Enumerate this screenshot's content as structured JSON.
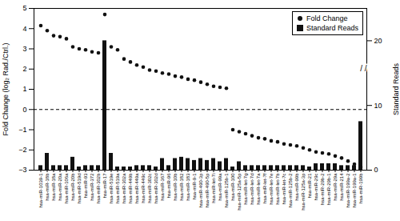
{
  "chart_data": {
    "type": "bar",
    "categories": [
      "hsa-miR-1039-1",
      "hsa-miR-18b",
      "hsa-miR-18a",
      "hsa-miR-20a",
      "hsa-miR-106a",
      "hsa-miR-20b",
      "hsa-miR-519d",
      "hsa-miR-93",
      "hsa-miR-372",
      "hsa-miR-302b",
      "hsa-miR-17",
      "hsa-miR-519e",
      "hsa-miR-519a",
      "hsa-miR-302a",
      "hsa-miR-449b",
      "hsa-miR-449a",
      "hsa-miR-449c",
      "hsa-miR-302c",
      "hsa-miR-302d",
      "hsa-miR-367",
      "hsa-miR-96",
      "hsa-miR-10b",
      "hsa-miR-182",
      "hsa-miR-183",
      "hsa-miR-9-1",
      "hsa-miR-490-3p",
      "hsa-miR-490-5p",
      "hsa-miR-let-7i",
      "hsa-miR-99a",
      "hsa-miR-125b-1",
      "hsa-miR-100",
      "hsa-miR-125a-5p",
      "hsa-miR-let-7g",
      "hsa-miR-let-7d",
      "hsa-miR-let-7a",
      "hsa-miR-let-7f",
      "hsa-miR-let-7e",
      "hsa-miR-let-7b",
      "hsa-miR-let-7c",
      "hsa-miR-125b-2",
      "hsa-miR-99b",
      "hsa-miR-125a-3p",
      "hsa-miR-21",
      "hsa-miR-29c",
      "hsa-miR-29b-2",
      "hsa-miR-29b-1",
      "hsa-miR-29a",
      "hsa-miR-214",
      "hsa-miR-199a-2",
      "hsa-miR-199a-1",
      "hsa-miR-199b"
    ],
    "series": [
      {
        "name": "Fold Change",
        "type": "scatter",
        "marker": "circle",
        "color": "#111111",
        "values": [
          4.15,
          3.9,
          3.65,
          3.6,
          3.5,
          3.1,
          3.0,
          2.95,
          2.85,
          2.8,
          4.7,
          3.1,
          2.95,
          2.5,
          2.35,
          2.2,
          2.1,
          1.95,
          1.9,
          1.8,
          1.75,
          1.65,
          1.6,
          1.5,
          1.45,
          1.35,
          1.25,
          1.15,
          1.1,
          1.05,
          -1.0,
          -1.1,
          -1.2,
          -1.3,
          -1.4,
          -1.45,
          -1.55,
          -1.6,
          -1.7,
          -1.75,
          -1.8,
          -1.9,
          -2.0,
          -2.1,
          -2.15,
          -2.2,
          -2.3,
          -2.4,
          -2.55,
          -2.7,
          -2.85
        ]
      },
      {
        "name": "Standard Reads",
        "type": "bar",
        "axis": "y2",
        "color": "#111111",
        "values": [
          0.7,
          2.6,
          0.7,
          0.7,
          0.7,
          2.0,
          0.5,
          0.7,
          0.7,
          0.7,
          20.0,
          2.6,
          0.5,
          0.5,
          0.5,
          0.7,
          0.7,
          0.7,
          0.5,
          1.8,
          0.7,
          1.8,
          2.0,
          1.8,
          1.5,
          1.8,
          1.5,
          1.8,
          1.3,
          1.8,
          0.5,
          1.3,
          0.7,
          0.7,
          0.7,
          0.7,
          0.7,
          0.7,
          0.7,
          0.7,
          0.7,
          0.7,
          0.5,
          1.0,
          1.0,
          1.0,
          1.0,
          0.7,
          0.7,
          0.7,
          7.5
        ]
      }
    ],
    "ylabel": "Fold Change (log₂ Rad./Ctrl.)",
    "y2label": "Standard Reads",
    "ylim": [
      -3,
      5
    ],
    "yticks": [
      -3,
      -2,
      -1,
      0,
      1,
      2,
      3,
      4,
      5
    ],
    "y2lim": [
      0,
      25
    ],
    "y2ticks": [
      0,
      10,
      20
    ],
    "reference_line": {
      "value": 0,
      "line_style": "dashed",
      "color": "#000000"
    },
    "annotations": [
      "/ /"
    ],
    "legend": "upper right",
    "grid": false
  }
}
